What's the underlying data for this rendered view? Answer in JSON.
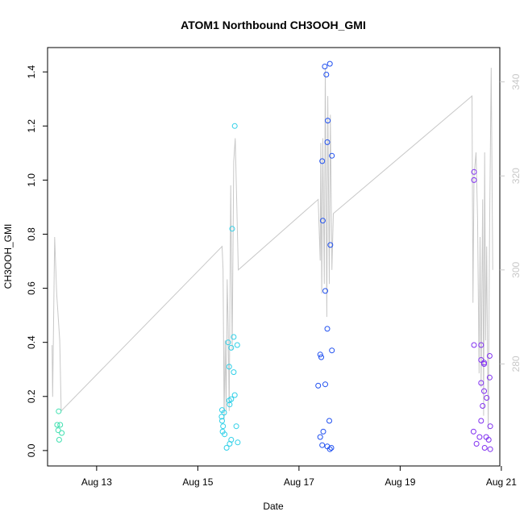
{
  "chart_data": {
    "type": "scatter",
    "title": "ATOM1 Northbound CH3OOH_GMI",
    "xlabel": "Date",
    "ylabel": "CH3OOH_GMI",
    "x_ticks": [
      {
        "day": 13,
        "label": "Aug 13"
      },
      {
        "day": 15,
        "label": "Aug 15"
      },
      {
        "day": 17,
        "label": "Aug 17"
      },
      {
        "day": 19,
        "label": "Aug 19"
      },
      {
        "day": 21,
        "label": "Aug 21"
      }
    ],
    "xlim": [
      12.03,
      20.97
    ],
    "ylim": [
      -0.057,
      1.49
    ],
    "y_ticks": [
      "0.0",
      "0.2",
      "0.4",
      "0.6",
      "0.8",
      "1.0",
      "1.2",
      "1.4"
    ],
    "y2lim": [
      258.3,
      347.3
    ],
    "y2_ticks": [
      "280",
      "300",
      "320",
      "340"
    ],
    "grid": false,
    "legend": "none",
    "colors": {
      "axis": "#000000",
      "secondary_axis": "#c8c8c8",
      "altitude_line": "#c8c8c8",
      "point_palette": [
        "#40e0b0",
        "#30d0e8",
        "#2050f0",
        "#8030f0"
      ]
    },
    "scatter_groups": [
      {
        "color": "#40e0b0",
        "points": [
          [
            12.25,
            0.145
          ],
          [
            12.22,
            0.095
          ],
          [
            12.28,
            0.095
          ],
          [
            12.24,
            0.075
          ],
          [
            12.31,
            0.065
          ],
          [
            12.26,
            0.04
          ]
        ]
      },
      {
        "color": "#30d0e8",
        "points": [
          [
            15.73,
            1.2
          ],
          [
            15.68,
            0.82
          ],
          [
            15.71,
            0.42
          ],
          [
            15.6,
            0.4
          ],
          [
            15.78,
            0.39
          ],
          [
            15.66,
            0.38
          ],
          [
            15.62,
            0.31
          ],
          [
            15.71,
            0.29
          ],
          [
            15.73,
            0.205
          ],
          [
            15.66,
            0.19
          ],
          [
            15.62,
            0.185
          ],
          [
            15.63,
            0.17
          ],
          [
            15.48,
            0.15
          ],
          [
            15.52,
            0.14
          ],
          [
            15.47,
            0.125
          ],
          [
            15.48,
            0.11
          ],
          [
            15.5,
            0.09
          ],
          [
            15.76,
            0.09
          ],
          [
            15.49,
            0.07
          ],
          [
            15.53,
            0.06
          ],
          [
            15.66,
            0.04
          ],
          [
            15.63,
            0.025
          ],
          [
            15.79,
            0.03
          ],
          [
            15.57,
            0.01
          ]
        ]
      },
      {
        "color": "#2050f0",
        "points": [
          [
            17.61,
            1.43
          ],
          [
            17.51,
            1.42
          ],
          [
            17.54,
            1.39
          ],
          [
            17.57,
            1.22
          ],
          [
            17.56,
            1.14
          ],
          [
            17.65,
            1.09
          ],
          [
            17.46,
            1.07
          ],
          [
            17.47,
            0.85
          ],
          [
            17.62,
            0.76
          ],
          [
            17.52,
            0.59
          ],
          [
            17.56,
            0.45
          ],
          [
            17.65,
            0.37
          ],
          [
            17.42,
            0.355
          ],
          [
            17.44,
            0.345
          ],
          [
            17.52,
            0.245
          ],
          [
            17.38,
            0.24
          ],
          [
            17.6,
            0.11
          ],
          [
            17.48,
            0.07
          ],
          [
            17.42,
            0.05
          ],
          [
            17.46,
            0.02
          ],
          [
            17.56,
            0.015
          ],
          [
            17.64,
            0.01
          ],
          [
            17.61,
            0.005
          ]
        ]
      },
      {
        "color": "#8030f0",
        "points": [
          [
            20.46,
            1.03
          ],
          [
            20.46,
            1.0
          ],
          [
            20.46,
            0.39
          ],
          [
            20.6,
            0.39
          ],
          [
            20.6,
            0.335
          ],
          [
            20.66,
            0.32
          ],
          [
            20.66,
            0.325
          ],
          [
            20.77,
            0.35
          ],
          [
            20.6,
            0.25
          ],
          [
            20.77,
            0.27
          ],
          [
            20.66,
            0.22
          ],
          [
            20.71,
            0.195
          ],
          [
            20.63,
            0.165
          ],
          [
            20.6,
            0.11
          ],
          [
            20.78,
            0.09
          ],
          [
            20.45,
            0.07
          ],
          [
            20.57,
            0.05
          ],
          [
            20.7,
            0.05
          ],
          [
            20.75,
            0.04
          ],
          [
            20.51,
            0.025
          ],
          [
            20.67,
            0.01
          ],
          [
            20.78,
            0.005
          ]
        ]
      }
    ],
    "altitude_line": [
      [
        12.12,
        284
      ],
      [
        12.13,
        273
      ],
      [
        12.17,
        307
      ],
      [
        12.21,
        295
      ],
      [
        12.27,
        285
      ],
      [
        12.3,
        270
      ],
      [
        15.48,
        305
      ],
      [
        15.5,
        300
      ],
      [
        15.52,
        268
      ],
      [
        15.54,
        285
      ],
      [
        15.56,
        270
      ],
      [
        15.58,
        298
      ],
      [
        15.6,
        288
      ],
      [
        15.62,
        270
      ],
      [
        15.65,
        318
      ],
      [
        15.68,
        283
      ],
      [
        15.71,
        323
      ],
      [
        15.74,
        328
      ],
      [
        15.8,
        300
      ],
      [
        17.38,
        315
      ],
      [
        17.42,
        302
      ],
      [
        17.43,
        327
      ],
      [
        17.45,
        295
      ],
      [
        17.47,
        328
      ],
      [
        17.5,
        297
      ],
      [
        17.52,
        343
      ],
      [
        17.55,
        290
      ],
      [
        17.57,
        337
      ],
      [
        17.6,
        297
      ],
      [
        17.62,
        333
      ],
      [
        17.65,
        300
      ],
      [
        17.68,
        312
      ],
      [
        20.42,
        337
      ],
      [
        20.44,
        293
      ],
      [
        20.46,
        320
      ],
      [
        20.5,
        325
      ],
      [
        20.53,
        311
      ],
      [
        20.56,
        278
      ],
      [
        20.58,
        307
      ],
      [
        20.6,
        275
      ],
      [
        20.63,
        315
      ],
      [
        20.65,
        269
      ],
      [
        20.67,
        325
      ],
      [
        20.69,
        285
      ],
      [
        20.71,
        305
      ],
      [
        20.74,
        266
      ],
      [
        20.77,
        310
      ],
      [
        20.8,
        343
      ],
      [
        20.83,
        300
      ]
    ]
  }
}
